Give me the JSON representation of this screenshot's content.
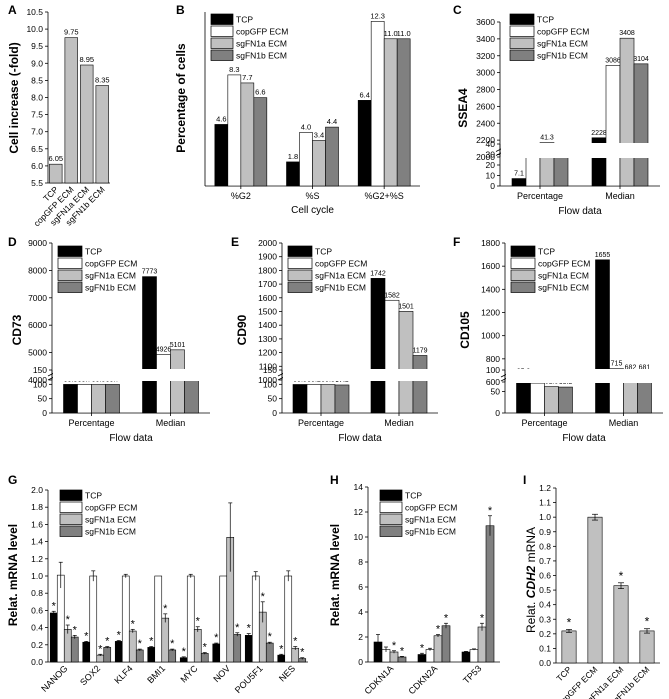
{
  "colors": {
    "tcp": "#000000",
    "copgfp": "#ffffff",
    "sgfn1a": "#c0c0c0",
    "sgfn1b": "#808080",
    "axis": "#000000"
  },
  "legend_labels": [
    "TCP",
    "copGFP ECM",
    "sgFN1a ECM",
    "sgFN1b ECM"
  ],
  "chart_data": [
    {
      "panel": "A",
      "type": "bar",
      "ylabel": "Cell increase (-fold)",
      "xlabel": "",
      "ylim": [
        5.5,
        10.5
      ],
      "yticks": [
        5.5,
        6.0,
        6.5,
        7.0,
        7.5,
        8.0,
        8.5,
        9.0,
        9.5,
        10.0,
        10.5
      ],
      "categories": [
        "TCP",
        "copGFP ECM",
        "sgFN1a ECM",
        "sgFN1b ECM"
      ],
      "values": [
        6.05,
        9.75,
        8.95,
        8.35
      ],
      "value_labels": [
        "6.05",
        "9.75",
        "8.95",
        "8.35"
      ]
    },
    {
      "panel": "B",
      "type": "bar",
      "ylabel": "Percentage of cells",
      "xlabel": "Cell cycle",
      "categories": [
        "%G2",
        "%S",
        "%G2+%S"
      ],
      "series": [
        {
          "name": "TCP",
          "values": [
            4.6,
            1.8,
            6.4
          ],
          "labels": [
            "4.6",
            "1.8",
            "6.4"
          ]
        },
        {
          "name": "copGFP ECM",
          "values": [
            8.3,
            4.0,
            12.3
          ],
          "labels": [
            "8.3",
            "4.0",
            "12.3"
          ]
        },
        {
          "name": "sgFN1a ECM",
          "values": [
            7.7,
            3.4,
            11.0
          ],
          "labels": [
            "7.7",
            "3.4",
            "11.0"
          ]
        },
        {
          "name": "sgFN1b ECM",
          "values": [
            6.6,
            4.4,
            11.0
          ],
          "labels": [
            "6.6",
            "4.4",
            "11.0"
          ]
        }
      ],
      "ylim": [
        0,
        13
      ]
    },
    {
      "panel": "C",
      "type": "bar",
      "ylabel": "SSEA4",
      "xlabel": "Flow data",
      "categories": [
        "Percentage",
        "Median"
      ],
      "series": [
        {
          "name": "TCP",
          "values": [
            7.1,
            2228
          ],
          "labels": [
            "7.1",
            "2228"
          ]
        },
        {
          "name": "copGFP ECM",
          "values": [
            31.6,
            3086
          ],
          "labels": [
            "31.6",
            "3086"
          ]
        },
        {
          "name": "sgFN1a ECM",
          "values": [
            41.3,
            3408
          ],
          "labels": [
            "41.3",
            "3408"
          ]
        },
        {
          "name": "sgFN1b ECM",
          "values": [
            31.0,
            3104
          ],
          "labels": [
            "31.0",
            "3104"
          ]
        }
      ],
      "lower_ticks": [
        0,
        10,
        20,
        30,
        40
      ],
      "upper_ticks": [
        2000,
        2200,
        2400,
        2600,
        2800,
        3000,
        3200,
        3400,
        3600
      ]
    },
    {
      "panel": "D",
      "type": "bar",
      "ylabel": "CD73",
      "xlabel": "Flow data",
      "categories": [
        "Percentage",
        "Median"
      ],
      "series": [
        {
          "name": "TCP",
          "values": [
            99.8,
            7773
          ],
          "labels": [
            "99.8",
            "7773"
          ]
        },
        {
          "name": "copGFP ECM",
          "values": [
            99.7,
            4926
          ],
          "labels": [
            "99.7",
            "4926"
          ]
        },
        {
          "name": "sgFN1a ECM",
          "values": [
            99.5,
            5101
          ],
          "labels": [
            "99.5",
            "5101"
          ]
        },
        {
          "name": "sgFN1b ECM",
          "values": [
            99.7,
            4057
          ],
          "labels": [
            "99.7",
            "4057"
          ]
        }
      ],
      "lower_ticks": [
        0,
        50,
        100,
        150
      ],
      "upper_ticks": [
        4000,
        5000,
        6000,
        7000,
        8000,
        9000
      ]
    },
    {
      "panel": "E",
      "type": "bar",
      "ylabel": "CD90",
      "xlabel": "Flow data",
      "categories": [
        "Percentage",
        "Median"
      ],
      "series": [
        {
          "name": "TCP",
          "values": [
            99.5,
            1742
          ],
          "labels": [
            "99.5",
            "1742"
          ]
        },
        {
          "name": "copGFP ECM",
          "values": [
            99.2,
            1582
          ],
          "labels": [
            "99.2",
            "1582"
          ]
        },
        {
          "name": "sgFN1a ECM",
          "values": [
            99.3,
            1501
          ],
          "labels": [
            "99.3",
            "1501"
          ]
        },
        {
          "name": "sgFN1b ECM",
          "values": [
            97.8,
            1179
          ],
          "labels": [
            "97.8",
            "1179"
          ]
        }
      ],
      "lower_ticks": [
        0,
        50,
        100,
        150
      ],
      "upper_ticks": [
        1000,
        1100,
        1200,
        1300,
        1400,
        1500,
        1600,
        1700,
        1800,
        1900,
        2000
      ]
    },
    {
      "panel": "F",
      "type": "bar",
      "ylabel": "CD105",
      "xlabel": "Flow data",
      "categories": [
        "Percentage",
        "Median"
      ],
      "series": [
        {
          "name": "TCP",
          "values": [
            85.3,
            1655
          ],
          "labels": [
            "85.3",
            "1655"
          ]
        },
        {
          "name": "copGFP ECM",
          "values": [
            69.5,
            715
          ],
          "labels": [
            "69.5",
            "715"
          ]
        },
        {
          "name": "sgFN1a ECM",
          "values": [
            61.5,
            682
          ],
          "labels": [
            "61.5",
            "682"
          ]
        },
        {
          "name": "sgFN1b ECM",
          "values": [
            60.3,
            681
          ],
          "labels": [
            "60.3",
            "681"
          ]
        }
      ],
      "lower_ticks": [
        0,
        50,
        100
      ],
      "upper_ticks": [
        600,
        800,
        1000,
        1200,
        1400,
        1600,
        1800
      ]
    },
    {
      "panel": "G",
      "type": "bar",
      "ylabel": "Relat. mRNA level",
      "xlabel": "",
      "ylim": [
        0,
        2.0
      ],
      "yticks": [
        0.0,
        0.2,
        0.4,
        0.6,
        0.8,
        1.0,
        1.2,
        1.4,
        1.6,
        1.8,
        2.0
      ],
      "categories": [
        "NANOG",
        "SOX2",
        "KLF4",
        "BMI1",
        "MYC",
        "NOV",
        "POU5F1",
        "NES"
      ],
      "series": [
        {
          "name": "TCP",
          "values": [
            0.57,
            0.23,
            0.24,
            0.17,
            0.05,
            0.21,
            0.31,
            0.08
          ],
          "errors": [
            0.02,
            0.01,
            0.01,
            0.01,
            0.01,
            0.01,
            0.02,
            0.01
          ]
        },
        {
          "name": "copGFP ECM",
          "values": [
            1.01,
            1.0,
            1.0,
            1.0,
            1.0,
            1.0,
            1.0,
            1.0
          ],
          "errors": [
            0.15,
            0.06,
            0.02,
            0.0,
            0.02,
            0.0,
            0.05,
            0.06
          ]
        },
        {
          "name": "sgFN1a ECM",
          "values": [
            0.38,
            0.08,
            0.36,
            0.51,
            0.38,
            1.45,
            0.58,
            0.16
          ],
          "errors": [
            0.05,
            0.01,
            0.02,
            0.05,
            0.03,
            0.4,
            0.12,
            0.02
          ]
        },
        {
          "name": "sgFN1b ECM",
          "values": [
            0.29,
            0.17,
            0.14,
            0.14,
            0.1,
            0.32,
            0.22,
            0.04
          ],
          "errors": [
            0.02,
            0.01,
            0.01,
            0.01,
            0.01,
            0.02,
            0.01,
            0.01
          ]
        }
      ],
      "significant": [
        [
          1,
          0,
          1,
          1
        ],
        [
          1,
          0,
          1,
          1
        ],
        [
          1,
          0,
          1,
          1
        ],
        [
          1,
          0,
          1,
          1
        ],
        [
          1,
          0,
          1,
          1
        ],
        [
          1,
          0,
          0,
          1
        ],
        [
          1,
          0,
          1,
          1
        ],
        [
          1,
          0,
          1,
          1
        ]
      ],
      "sig_mark": "*"
    },
    {
      "panel": "H",
      "type": "bar",
      "ylabel": "Relat. mRNA level",
      "xlabel": "",
      "ylim": [
        0,
        14
      ],
      "yticks": [
        0,
        2,
        4,
        6,
        8,
        10,
        12,
        14
      ],
      "categories": [
        "CDKN1A",
        "CDKN2A",
        "TP53"
      ],
      "series": [
        {
          "name": "TCP",
          "values": [
            1.6,
            0.6,
            0.8
          ],
          "errors": [
            0.6,
            0.1,
            0.05
          ]
        },
        {
          "name": "copGFP ECM",
          "values": [
            1.0,
            1.0,
            1.0
          ],
          "errors": [
            0.2,
            0.1,
            0.05
          ]
        },
        {
          "name": "sgFN1a ECM",
          "values": [
            0.8,
            2.1,
            2.8
          ],
          "errors": [
            0.1,
            0.1,
            0.3
          ]
        },
        {
          "name": "sgFN1b ECM",
          "values": [
            0.4,
            2.9,
            10.9
          ],
          "errors": [
            0.05,
            0.2,
            0.8
          ]
        }
      ],
      "significant": [
        [
          0,
          0,
          1,
          1
        ],
        [
          1,
          0,
          1,
          1
        ],
        [
          0,
          0,
          1,
          1
        ]
      ],
      "sig_mark": "*"
    },
    {
      "panel": "I",
      "type": "bar",
      "ylabel_prefix": "Relat. ",
      "ylabel_gene": "CDH2",
      "ylabel_suffix": " mRNA",
      "xlabel": "",
      "ylim": [
        0,
        1.2
      ],
      "yticks": [
        0.0,
        0.1,
        0.2,
        0.3,
        0.4,
        0.5,
        0.6,
        0.7,
        0.8,
        0.9,
        1.0,
        1.1,
        1.2
      ],
      "categories": [
        "TCP",
        "copGFP ECM",
        "sgFN1a ECM",
        "sgFN1b ECM"
      ],
      "values": [
        0.22,
        1.0,
        0.53,
        0.22
      ],
      "errors": [
        0.01,
        0.02,
        0.02,
        0.015
      ],
      "significant": [
        1,
        0,
        1,
        1
      ],
      "sig_mark": "*"
    }
  ]
}
